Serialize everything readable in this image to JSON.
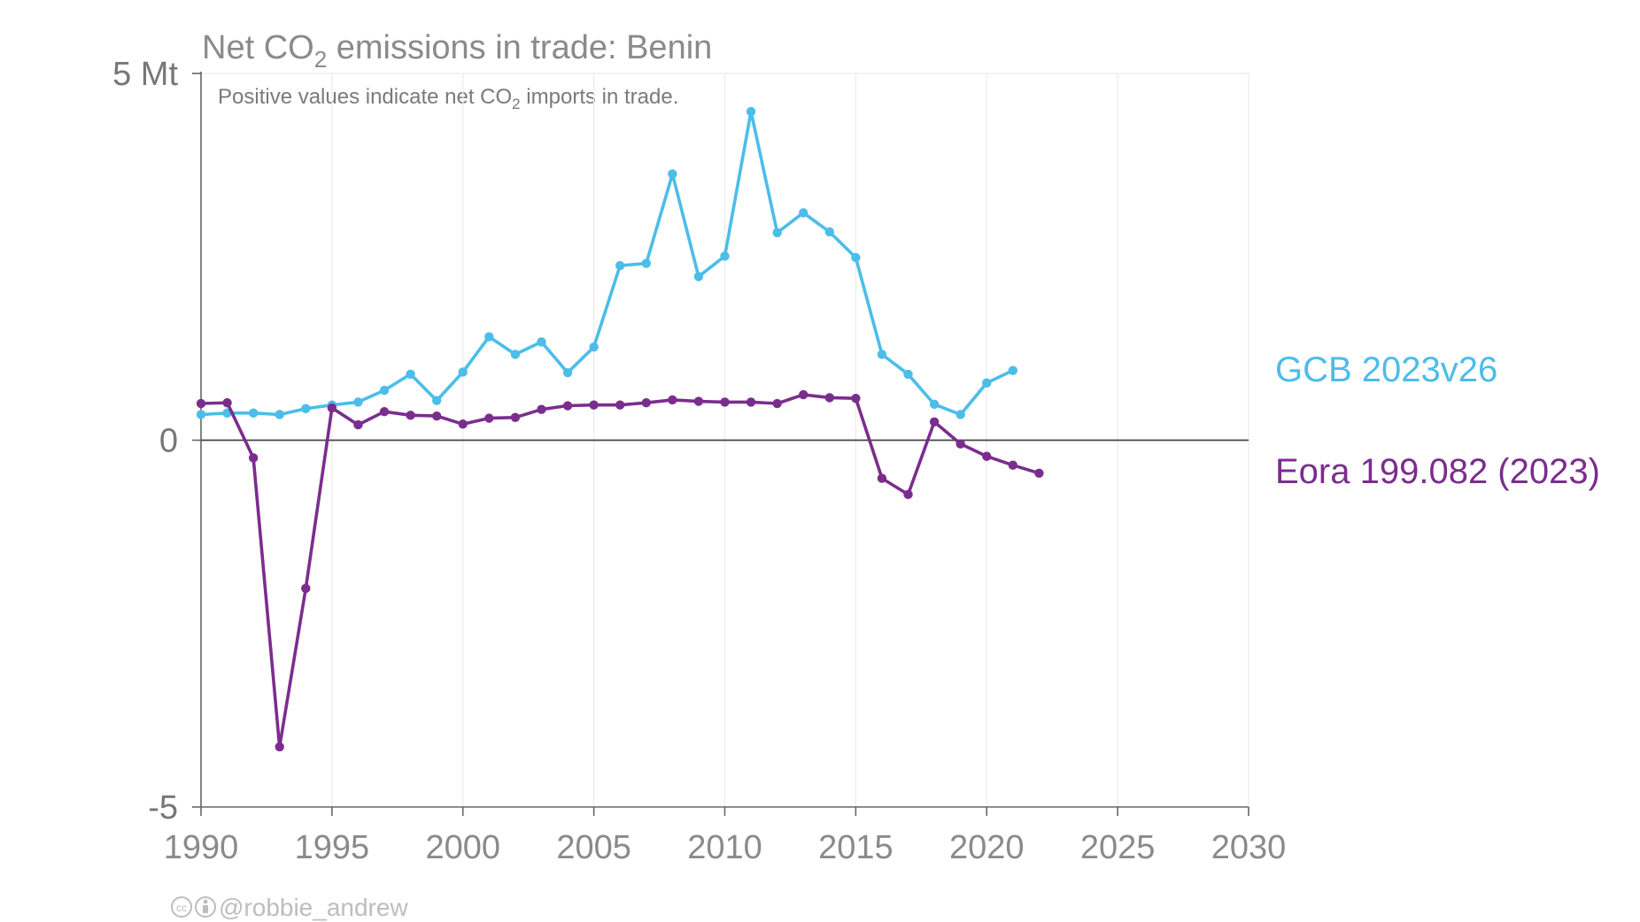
{
  "chart_data": {
    "type": "line",
    "title_main": "Net CO",
    "title_sub": "2",
    "title_rest": " emissions in trade: Benin",
    "subtitle_main": "Positive values indicate net CO",
    "subtitle_sub": "2",
    "subtitle_rest": " imports in trade.",
    "y_unit": "Mt",
    "ylim": [
      -5,
      5
    ],
    "xlim": [
      1990,
      2030
    ],
    "y_ticks": [
      {
        "value": 5,
        "label": "5 Mt"
      },
      {
        "value": 0,
        "label": "0"
      },
      {
        "value": -5,
        "label": "-5"
      }
    ],
    "x_ticks": [
      {
        "value": 1990,
        "label": "1990"
      },
      {
        "value": 1995,
        "label": "1995"
      },
      {
        "value": 2000,
        "label": "2000"
      },
      {
        "value": 2005,
        "label": "2005"
      },
      {
        "value": 2010,
        "label": "2010"
      },
      {
        "value": 2015,
        "label": "2015"
      },
      {
        "value": 2020,
        "label": "2020"
      },
      {
        "value": 2025,
        "label": "2025"
      },
      {
        "value": 2030,
        "label": "2030"
      }
    ],
    "grid": "vertical",
    "legend_placement": "right",
    "series": [
      {
        "name": "GCB 2023v26",
        "color": "#4cbde9",
        "x": [
          1990,
          1991,
          1992,
          1993,
          1994,
          1995,
          1996,
          1997,
          1998,
          1999,
          2000,
          2001,
          2002,
          2003,
          2004,
          2005,
          2006,
          2007,
          2008,
          2009,
          2010,
          2011,
          2012,
          2013,
          2014,
          2015,
          2016,
          2017,
          2018,
          2019,
          2020,
          2021
        ],
        "values": [
          0.35,
          0.37,
          0.37,
          0.35,
          0.43,
          0.48,
          0.52,
          0.68,
          0.9,
          0.54,
          0.93,
          1.41,
          1.17,
          1.34,
          0.92,
          1.27,
          2.38,
          2.41,
          3.63,
          2.23,
          2.51,
          4.48,
          2.83,
          3.1,
          2.84,
          2.49,
          1.17,
          0.9,
          0.49,
          0.35,
          0.78,
          0.95
        ]
      },
      {
        "name": "Eora 199.082 (2023)",
        "color": "#7b2d8e",
        "x": [
          1990,
          1991,
          1992,
          1993,
          1994,
          1995,
          1996,
          1997,
          1998,
          1999,
          2000,
          2001,
          2002,
          2003,
          2004,
          2005,
          2006,
          2007,
          2008,
          2009,
          2010,
          2011,
          2012,
          2013,
          2014,
          2015,
          2016,
          2017,
          2018,
          2019,
          2020,
          2021,
          2022
        ],
        "values": [
          0.5,
          0.51,
          -0.24,
          -4.18,
          -2.02,
          0.44,
          0.21,
          0.39,
          0.34,
          0.33,
          0.22,
          0.3,
          0.31,
          0.42,
          0.47,
          0.48,
          0.48,
          0.51,
          0.55,
          0.53,
          0.52,
          0.52,
          0.5,
          0.62,
          0.58,
          0.57,
          -0.52,
          -0.74,
          0.25,
          -0.05,
          -0.22,
          -0.34,
          -0.45
        ]
      }
    ]
  },
  "credit": "@robbie_andrew",
  "icons": [
    "cc-icon",
    "by-icon"
  ]
}
